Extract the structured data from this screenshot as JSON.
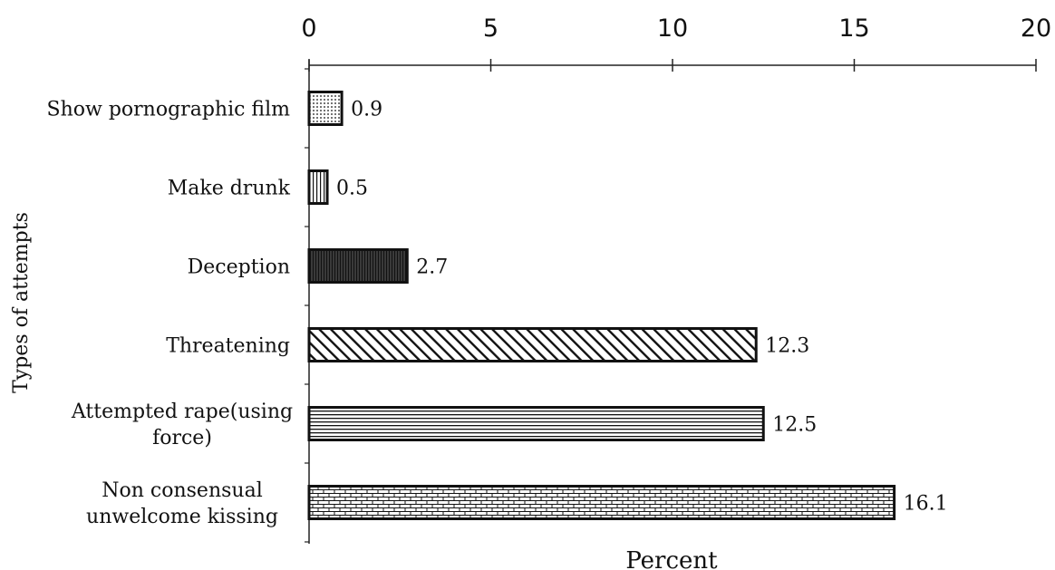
{
  "chart_data": {
    "type": "bar",
    "orientation": "horizontal",
    "categories": [
      "Show pornographic film",
      "Make drunk",
      "Deception",
      "Threatening",
      "Attempted rape(using force)",
      "Non consensual unwelcome kissing"
    ],
    "category_lines": [
      [
        "Show pornographic film"
      ],
      [
        "Make drunk"
      ],
      [
        "Deception"
      ],
      [
        "Threatening"
      ],
      [
        "Attempted rape(using",
        "force)"
      ],
      [
        "Non consensual",
        "unwelcome kissing"
      ]
    ],
    "values": [
      0.9,
      0.5,
      2.7,
      12.3,
      12.5,
      16.1
    ],
    "value_labels": [
      "0.9",
      "0.5",
      "2.7",
      "12.3",
      "12.5",
      "16.1"
    ],
    "patterns": [
      "dots",
      "vertical-lines",
      "dense-dark",
      "diagonal-lines",
      "horizontal-lines",
      "brick"
    ],
    "xlim": [
      0,
      20
    ],
    "xticks": [
      0,
      5,
      10,
      15,
      20
    ],
    "xtick_labels": [
      "0",
      "5",
      "10",
      "15",
      "20"
    ],
    "xaxis_position": "top",
    "xlabel": "Percent",
    "ylabel": "Types of attempts",
    "title": "",
    "grid": false,
    "legend": false
  }
}
